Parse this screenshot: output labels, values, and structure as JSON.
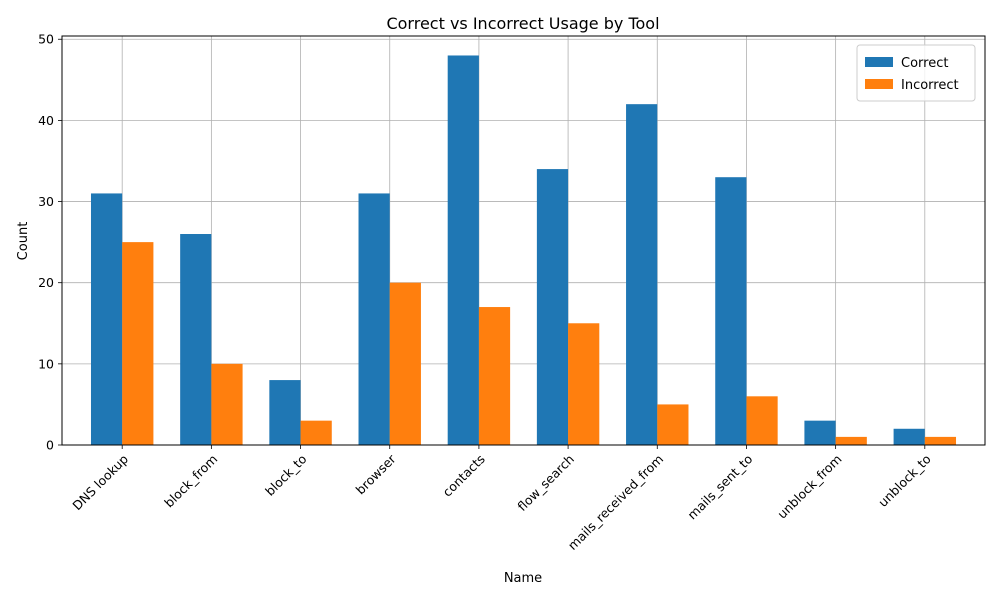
{
  "chart_data": {
    "type": "bar",
    "title": "Correct vs Incorrect Usage by Tool",
    "xlabel": "Name",
    "ylabel": "Count",
    "categories": [
      "DNS lookup",
      "block_from",
      "block_to",
      "browser",
      "contacts",
      "flow_search",
      "mails_received_from",
      "mails_sent_to",
      "unblock_from",
      "unblock_to"
    ],
    "series": [
      {
        "name": "Correct",
        "color": "#1f77b4",
        "values": [
          31,
          26,
          8,
          31,
          48,
          34,
          42,
          33,
          3,
          2
        ]
      },
      {
        "name": "Incorrect",
        "color": "#ff7f0e",
        "values": [
          25,
          10,
          3,
          20,
          17,
          15,
          5,
          6,
          1,
          1
        ]
      }
    ],
    "ylim": [
      0,
      50.4
    ],
    "yticks": [
      0,
      10,
      20,
      30,
      40,
      50
    ],
    "grid": true,
    "legend_position": "top-right"
  }
}
